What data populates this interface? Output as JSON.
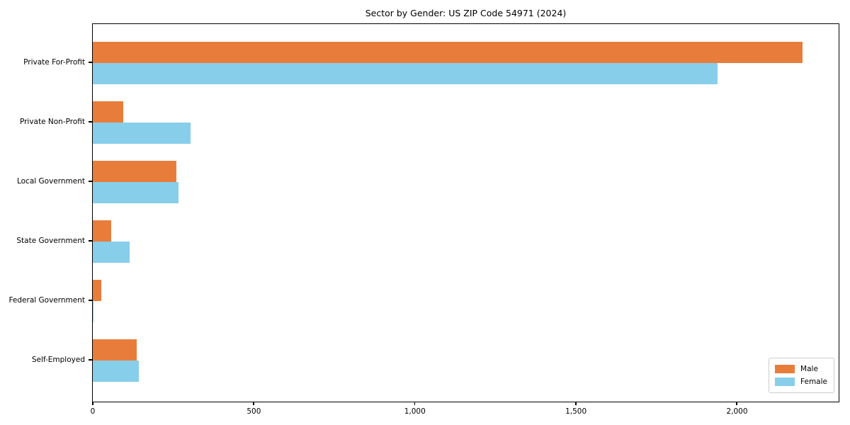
{
  "title": "Sector by Gender: US ZIP Code 54971 (2024)",
  "colors": {
    "male": "#e87d3b",
    "female": "#87ceeb",
    "axis": "#000000",
    "legend_border": "#cccccc",
    "background": "#ffffff"
  },
  "chart_data": {
    "type": "bar",
    "orientation": "horizontal",
    "title": "Sector by Gender: US ZIP Code 54971 (2024)",
    "xlabel": "",
    "ylabel": "",
    "categories": [
      "Private For-Profit",
      "Private Non-Profit",
      "Local Government",
      "State Government",
      "Federal Government",
      "Self-Employed"
    ],
    "series": [
      {
        "name": "Male",
        "color": "#e87d3b",
        "values": [
          2210,
          95,
          260,
          57,
          26,
          137
        ]
      },
      {
        "name": "Female",
        "color": "#87ceeb",
        "values": [
          1945,
          305,
          266,
          115,
          3,
          143
        ]
      }
    ],
    "xlim": [
      0,
      2320
    ],
    "xticks": [
      0,
      500,
      1000,
      1500,
      2000
    ],
    "xtick_labels": [
      "0",
      "500",
      "1,000",
      "1,500",
      "2,000"
    ],
    "grid": false,
    "legend_position": "lower right"
  },
  "legend": {
    "items": [
      {
        "label": "Male"
      },
      {
        "label": "Female"
      }
    ]
  }
}
